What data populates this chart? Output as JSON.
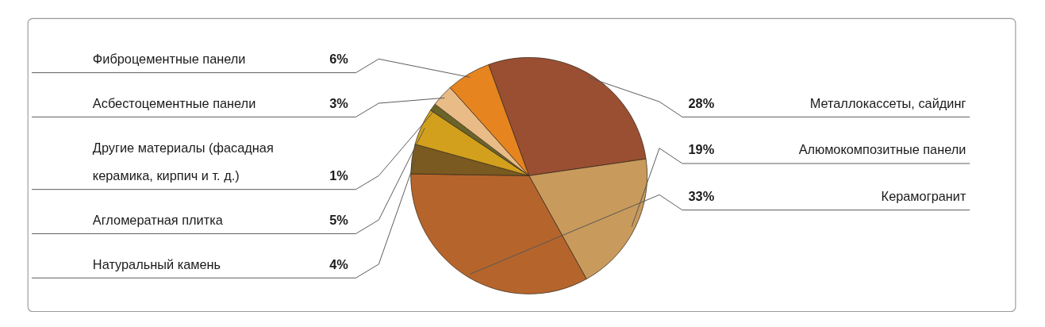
{
  "chart_data": {
    "type": "pie",
    "categories": [
      "Металлокассеты, сайдинг",
      "Алюмокомпозитные панели",
      "Керамогранит",
      "Натуральный камень",
      "Агломератная плитка",
      "Другие материалы (фасадная керамика, кирпич и т. д.)",
      "Асбестоцементные панели",
      "Фиброцементные панели"
    ],
    "values": [
      28,
      19,
      33,
      4,
      5,
      1,
      3,
      6
    ],
    "value_labels": [
      "28%",
      "19%",
      "33%",
      "4%",
      "5%",
      "1%",
      "3%",
      "6%"
    ],
    "colors": [
      "#9a4f32",
      "#c89a5c",
      "#b5652c",
      "#7a5a20",
      "#d2a01c",
      "#6b6428",
      "#e9bb86",
      "#e6841f"
    ]
  }
}
